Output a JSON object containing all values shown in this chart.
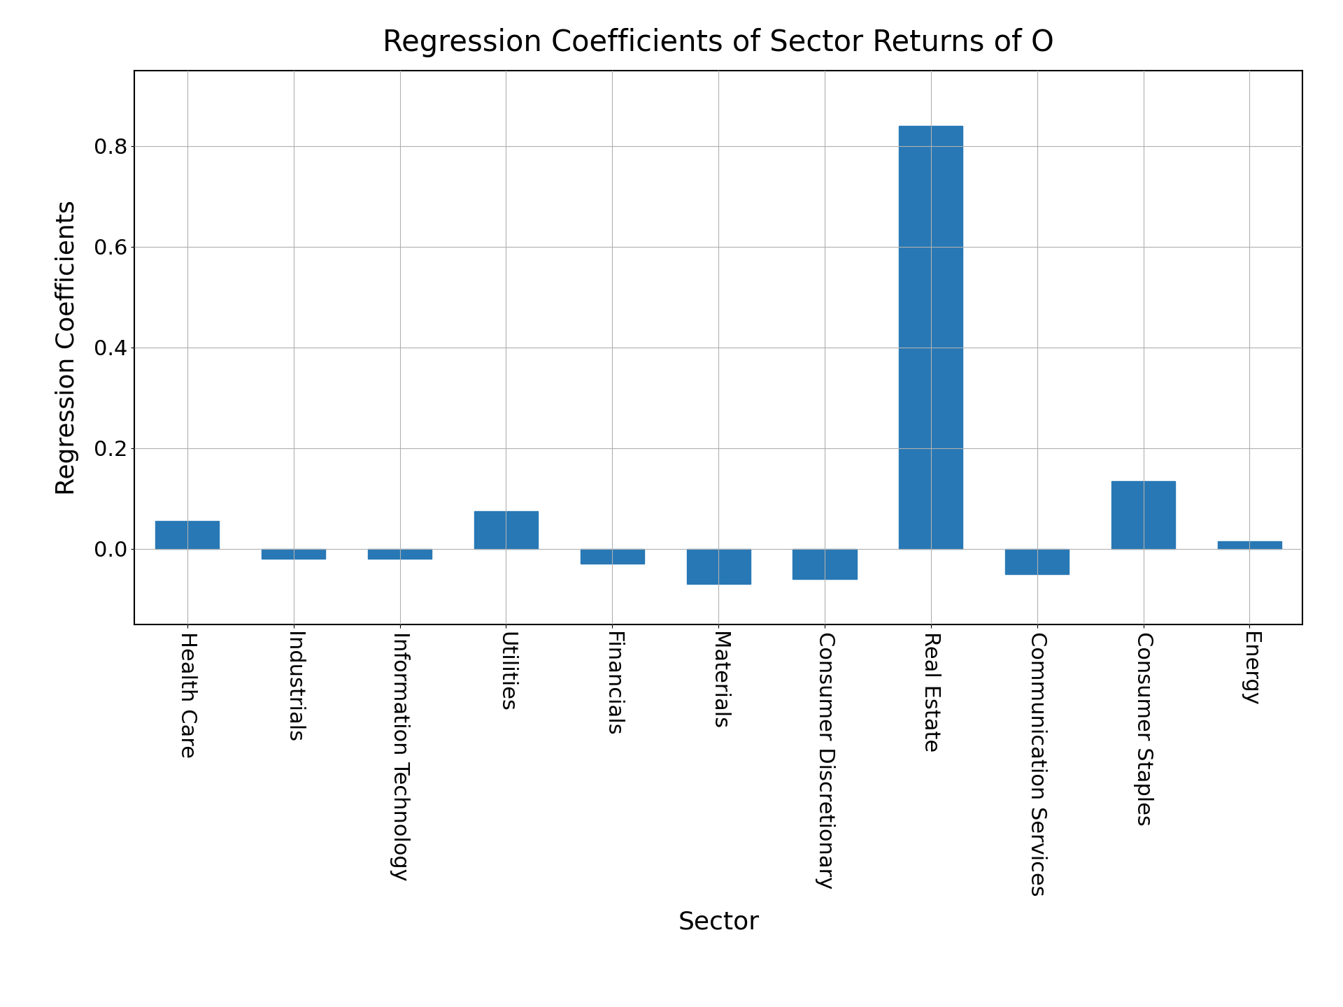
{
  "title": "Regression Coefficients of Sector Returns of O",
  "xlabel": "Sector",
  "ylabel": "Regression Coefficients",
  "categories": [
    "Health Care",
    "Industrials",
    "Information Technology",
    "Utilities",
    "Financials",
    "Materials",
    "Consumer Discretionary",
    "Real Estate",
    "Communication Services",
    "Consumer Staples",
    "Energy"
  ],
  "values": [
    0.055,
    -0.02,
    -0.02,
    0.075,
    -0.03,
    -0.07,
    -0.06,
    0.84,
    -0.05,
    0.135,
    0.015
  ],
  "bar_color": "#2878b5",
  "background_color": "#ffffff",
  "grid_color": "#b0b0b0",
  "title_fontsize": 30,
  "label_fontsize": 26,
  "tick_fontsize": 22,
  "ylim": [
    -0.15,
    0.95
  ],
  "yticks": [
    0.0,
    0.2,
    0.4,
    0.6,
    0.8
  ]
}
